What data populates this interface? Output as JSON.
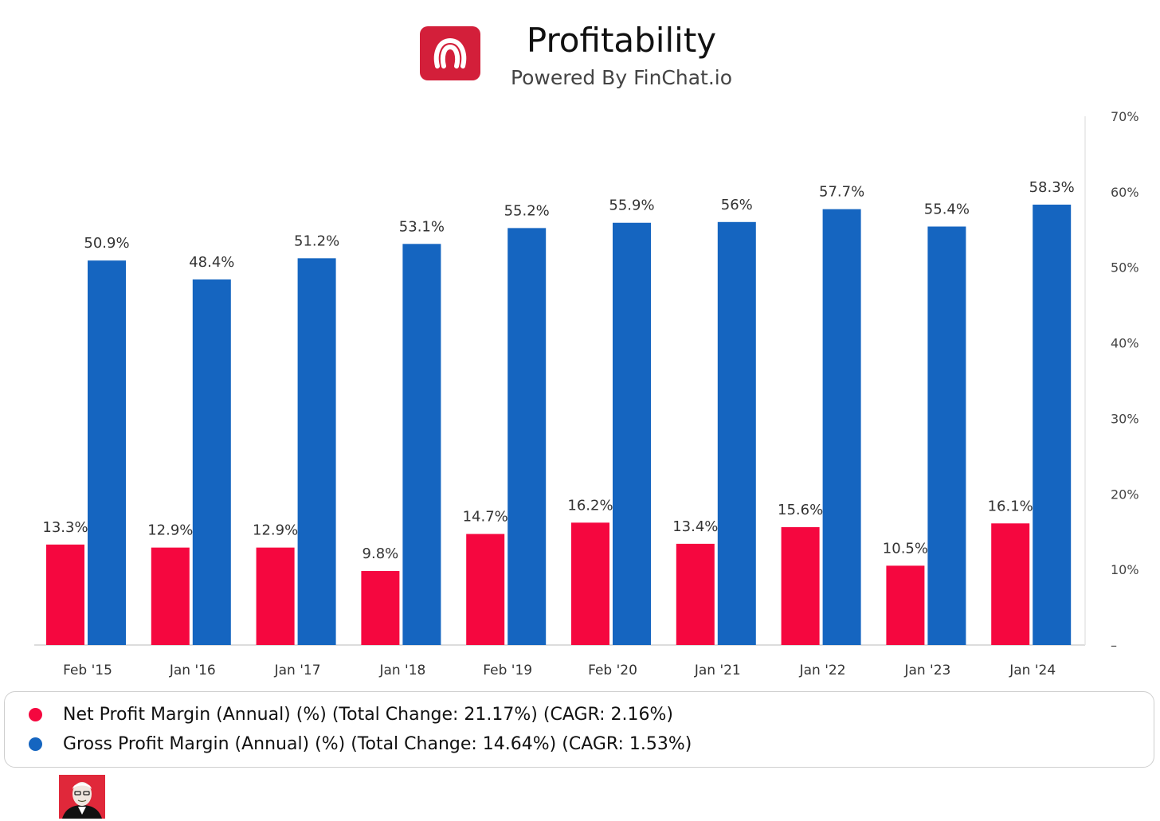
{
  "header": {
    "title": "Profitability",
    "subtitle": "Powered By FinChat.io",
    "logo_icon": "lululemon-logo-icon"
  },
  "colors": {
    "net": "#f5073f",
    "gross": "#1565c0",
    "logo_bg": "#d31f3a",
    "axis": "#dddddd",
    "text": "#333333"
  },
  "chart_data": {
    "type": "bar",
    "title": "Profitability",
    "categories": [
      "Feb '15",
      "Jan '16",
      "Jan '17",
      "Jan '18",
      "Feb '19",
      "Feb '20",
      "Jan '21",
      "Jan '22",
      "Jan '23",
      "Jan '24"
    ],
    "series": [
      {
        "name": "Net Profit Margin (Annual) (%)",
        "color": "#f5073f",
        "values": [
          13.3,
          12.9,
          12.9,
          9.8,
          14.7,
          16.2,
          13.4,
          15.6,
          10.5,
          16.1
        ],
        "labels": [
          "13.3%",
          "12.9%",
          "12.9%",
          "9.8%",
          "14.7%",
          "16.2%",
          "13.4%",
          "15.6%",
          "10.5%",
          "16.1%"
        ]
      },
      {
        "name": "Gross Profit Margin (Annual) (%)",
        "color": "#1565c0",
        "values": [
          50.9,
          48.4,
          51.2,
          53.1,
          55.2,
          55.9,
          56,
          57.7,
          55.4,
          58.3
        ],
        "labels": [
          "50.9%",
          "48.4%",
          "51.2%",
          "53.1%",
          "55.2%",
          "55.9%",
          "56%",
          "57.7%",
          "55.4%",
          "58.3%"
        ]
      }
    ],
    "ylim": [
      0,
      70
    ],
    "yticks": [
      0,
      10,
      20,
      30,
      40,
      50,
      60,
      70
    ],
    "ytick_labels": [
      "–",
      "10%",
      "20%",
      "30%",
      "40%",
      "50%",
      "60%",
      "70%"
    ],
    "y_axis_side": "right",
    "grid": false,
    "legend_position": "bottom"
  },
  "legend": {
    "items": [
      {
        "label": "Net Profit Margin (Annual) (%) (Total Change: 21.17%) (CAGR: 2.16%)",
        "color": "#f5073f"
      },
      {
        "label": "Gross Profit Margin (Annual) (%) (Total Change: 14.64%) (CAGR: 1.53%)",
        "color": "#1565c0"
      }
    ]
  },
  "footer": {
    "avatar_icon": "investor-portrait-icon"
  }
}
